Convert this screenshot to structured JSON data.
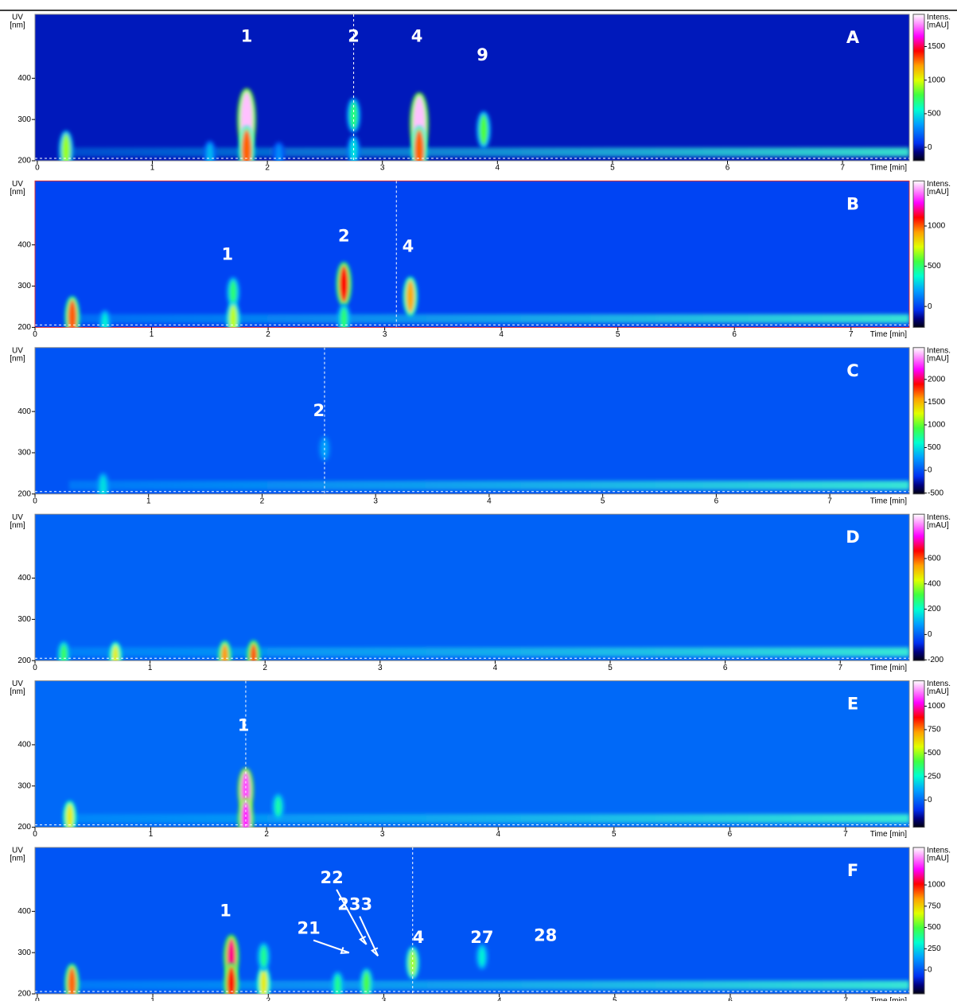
{
  "chart_data": [
    {
      "type": "heatmap",
      "label": "A",
      "ylabel": "UV",
      "yunit": "[nm]",
      "xlabel": "Time [min]",
      "colorbar_label": "Intens.",
      "colorbar_unit": "[mAU]",
      "xlim": [
        -0.02,
        7.58
      ],
      "ylim": [
        200,
        555
      ],
      "clim": [
        -200,
        1980
      ],
      "xticks": [
        0,
        1,
        2,
        3,
        4,
        5,
        6,
        7
      ],
      "yticks": [
        200,
        300,
        400
      ],
      "cticks": [
        0,
        500,
        1000,
        1500
      ],
      "cursor": 2.75,
      "peaks": {
        "x": [
          0.25,
          1.82,
          1.82,
          2.75,
          2.75,
          3.32,
          3.32,
          3.88,
          1.5,
          2.1
        ],
        "y": [
          225,
          300,
          225,
          310,
          225,
          290,
          225,
          275,
          215,
          215
        ],
        "intensity": [
          900,
          1900,
          1300,
          700,
          500,
          1900,
          1300,
          800,
          400,
          300
        ]
      },
      "annotations": [
        {
          "text": "1",
          "x": 1.82,
          "y": 500
        },
        {
          "text": "2",
          "x": 2.75,
          "y": 500
        },
        {
          "text": "4",
          "x": 3.3,
          "y": 500
        },
        {
          "text": "9",
          "x": 3.87,
          "y": 455
        }
      ]
    },
    {
      "type": "heatmap",
      "label": "B",
      "ylabel": "UV",
      "yunit": "[nm]",
      "xlabel": "Time [min]",
      "colorbar_label": "Intens.",
      "colorbar_unit": "[mAU]",
      "xlim": [
        0,
        7.5
      ],
      "ylim": [
        200,
        555
      ],
      "clim": [
        -260,
        1560
      ],
      "xticks": [
        0,
        1,
        2,
        3,
        4,
        5,
        6,
        7
      ],
      "yticks": [
        200,
        300,
        400
      ],
      "cticks": [
        0,
        500,
        1000
      ],
      "cursor": 3.1,
      "peaks": {
        "x": [
          0.32,
          1.7,
          1.7,
          2.65,
          2.65,
          3.22,
          0.6
        ],
        "y": [
          225,
          285,
          220,
          305,
          220,
          275,
          210
        ],
        "intensity": [
          1000,
          500,
          700,
          1100,
          500,
          900,
          350
        ]
      },
      "annotations": [
        {
          "text": "1",
          "x": 1.65,
          "y": 375
        },
        {
          "text": "2",
          "x": 2.65,
          "y": 420
        },
        {
          "text": "4",
          "x": 3.2,
          "y": 395
        }
      ]
    },
    {
      "type": "heatmap",
      "label": "C",
      "ylabel": "UV",
      "yunit": "[nm]",
      "xlabel": "Time [min]",
      "colorbar_label": "Intens.",
      "colorbar_unit": "[mAU]",
      "xlim": [
        0,
        7.7
      ],
      "ylim": [
        200,
        555
      ],
      "clim": [
        -520,
        2700
      ],
      "xticks": [
        0,
        1,
        2,
        3,
        4,
        5,
        6,
        7
      ],
      "yticks": [
        200,
        300,
        400
      ],
      "cticks": [
        -500,
        0,
        500,
        1000,
        1500,
        2000
      ],
      "cursor": 2.55,
      "peaks": {
        "x": [
          2.55,
          0.6
        ],
        "y": [
          310,
          215
        ],
        "intensity": [
          300,
          500
        ]
      },
      "annotations": [
        {
          "text": "2",
          "x": 2.5,
          "y": 400
        }
      ]
    },
    {
      "type": "heatmap",
      "label": "D",
      "ylabel": "UV",
      "yunit": "[nm]",
      "xlabel": "Time [min]",
      "colorbar_label": "Intens.",
      "colorbar_unit": "[mAU]",
      "xlim": [
        0,
        7.6
      ],
      "ylim": [
        200,
        555
      ],
      "clim": [
        -206,
        950
      ],
      "xticks": [
        0,
        1,
        2,
        3,
        4,
        5,
        6,
        7
      ],
      "yticks": [
        200,
        300,
        400
      ],
      "cticks": [
        -200,
        0,
        200,
        400,
        600
      ],
      "peaks": {
        "x": [
          0.7,
          1.65,
          1.9,
          0.25
        ],
        "y": [
          210,
          210,
          210,
          215
        ],
        "intensity": [
          450,
          550,
          600,
          300
        ]
      },
      "annotations": []
    },
    {
      "type": "heatmap",
      "label": "E",
      "ylabel": "UV",
      "yunit": "[nm]",
      "xlabel": "Time [min]",
      "colorbar_label": "Intens.",
      "colorbar_unit": "[mAU]",
      "xlim": [
        0,
        7.55
      ],
      "ylim": [
        200,
        555
      ],
      "clim": [
        -290,
        1270
      ],
      "xticks": [
        0,
        1,
        2,
        3,
        4,
        5,
        6,
        7
      ],
      "yticks": [
        200,
        300,
        400
      ],
      "cticks": [
        0,
        250,
        500,
        750,
        1000
      ],
      "cursor": 1.82,
      "peaks": {
        "x": [
          0.3,
          1.82,
          1.82,
          2.1
        ],
        "y": [
          225,
          290,
          220,
          250
        ],
        "intensity": [
          600,
          1100,
          1050,
          300
        ]
      },
      "annotations": [
        {
          "text": "1",
          "x": 1.8,
          "y": 445
        }
      ]
    },
    {
      "type": "heatmap",
      "label": "F",
      "ylabel": "UV",
      "yunit": "[nm]",
      "xlabel": "Time [min]",
      "colorbar_label": "Intens.",
      "colorbar_unit": "[mAU]",
      "xlim": [
        -0.02,
        7.55
      ],
      "ylim": [
        200,
        555
      ],
      "clim": [
        -280,
        1440
      ],
      "xticks": [
        0,
        1,
        2,
        3,
        4,
        5,
        6,
        7
      ],
      "yticks": [
        200,
        300,
        400
      ],
      "cticks": [
        0,
        250,
        500,
        750,
        1000
      ],
      "cursor": 3.25,
      "peaks": {
        "x": [
          0.3,
          1.68,
          1.68,
          1.96,
          1.96,
          3.25,
          2.6,
          2.85,
          3.85
        ],
        "y": [
          225,
          290,
          225,
          225,
          290,
          275,
          220,
          225,
          290
        ],
        "intensity": [
          900,
          1100,
          1000,
          700,
          400,
          600,
          400,
          500,
          300
        ]
      },
      "annotations": [
        {
          "text": "1",
          "x": 1.63,
          "y": 400
        },
        {
          "text": "21",
          "x": 2.35,
          "y": 357,
          "point": [
            2.7,
            300
          ]
        },
        {
          "text": "22",
          "x": 2.55,
          "y": 480,
          "point": [
            2.85,
            320
          ]
        },
        {
          "text": "233",
          "x": 2.75,
          "y": 415,
          "point": [
            2.95,
            292
          ]
        },
        {
          "text": "4",
          "x": 3.3,
          "y": 335
        },
        {
          "text": "27",
          "x": 3.85,
          "y": 335
        },
        {
          "text": "28",
          "x": 4.4,
          "y": 340
        }
      ]
    }
  ]
}
